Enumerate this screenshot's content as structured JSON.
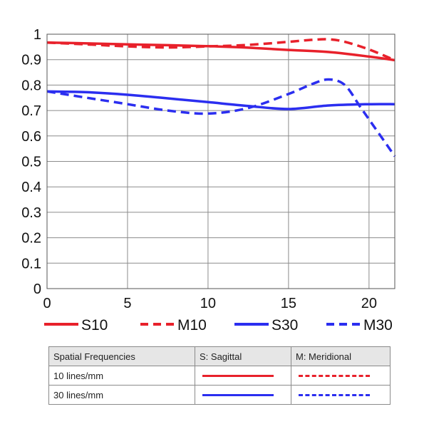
{
  "chart_data": {
    "type": "line",
    "title": "",
    "xlabel": "",
    "ylabel": "",
    "xlim": [
      0,
      21.6
    ],
    "ylim": [
      0,
      1
    ],
    "x_ticks": [
      0,
      5,
      10,
      15,
      20
    ],
    "y_ticks": [
      0,
      0.1,
      0.2,
      0.3,
      0.4,
      0.5,
      0.6,
      0.7,
      0.8,
      0.9,
      1
    ],
    "y_tick_labels": [
      "0",
      "0.1",
      "0.2",
      "0.3",
      "0.4",
      "0.5",
      "0.6",
      "0.7",
      "0.8",
      "0.9",
      "1"
    ],
    "x_tick_labels": [
      "0",
      "5",
      "10",
      "15",
      "20"
    ],
    "grid": true,
    "legend_position": "bottom",
    "series": [
      {
        "name": "S10",
        "color": "#e8212b",
        "dashed": false,
        "x": [
          0,
          2.5,
          5,
          7.5,
          10,
          12.5,
          15,
          17.5,
          20,
          21.6
        ],
        "y": [
          0.967,
          0.964,
          0.96,
          0.957,
          0.953,
          0.947,
          0.938,
          0.93,
          0.912,
          0.898
        ]
      },
      {
        "name": "M10",
        "color": "#e8212b",
        "dashed": true,
        "x": [
          0,
          2.5,
          5,
          7.5,
          10,
          12.5,
          15,
          16.5,
          17.5,
          18.5,
          20,
          21.6
        ],
        "y": [
          0.967,
          0.96,
          0.952,
          0.948,
          0.952,
          0.958,
          0.97,
          0.978,
          0.98,
          0.97,
          0.94,
          0.898
        ]
      },
      {
        "name": "S30",
        "color": "#2b2ef0",
        "dashed": false,
        "x": [
          0,
          2.5,
          5,
          7.5,
          10,
          12.5,
          15,
          17.5,
          20,
          21.6
        ],
        "y": [
          0.775,
          0.772,
          0.762,
          0.748,
          0.733,
          0.718,
          0.706,
          0.72,
          0.725,
          0.725
        ]
      },
      {
        "name": "M30",
        "color": "#2b2ef0",
        "dashed": true,
        "x": [
          0,
          2.5,
          5,
          7.5,
          10,
          12.5,
          15,
          16.5,
          17.5,
          18.5,
          19.5,
          20.5,
          21.6
        ],
        "y": [
          0.775,
          0.75,
          0.725,
          0.7,
          0.688,
          0.71,
          0.765,
          0.805,
          0.822,
          0.8,
          0.71,
          0.62,
          0.52
        ]
      }
    ]
  },
  "legend": {
    "items": [
      {
        "label": "S10",
        "color": "#e8212b",
        "dashed": false
      },
      {
        "label": "M10",
        "color": "#e8212b",
        "dashed": true
      },
      {
        "label": "S30",
        "color": "#2b2ef0",
        "dashed": false
      },
      {
        "label": "M30",
        "color": "#2b2ef0",
        "dashed": true
      }
    ]
  },
  "table": {
    "header": {
      "col1": "Spatial Frequencies",
      "col2": "S: Sagittal",
      "col3": "M: Meridional"
    },
    "rows": [
      {
        "label": "10 lines/mm"
      },
      {
        "label": "30 lines/mm"
      }
    ]
  }
}
